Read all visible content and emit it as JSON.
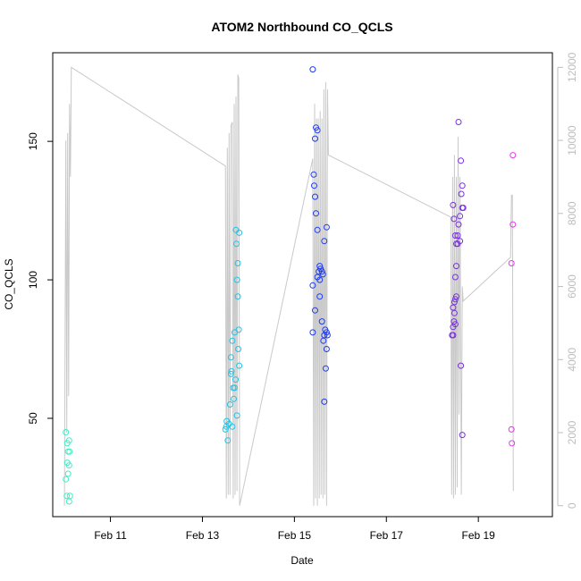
{
  "chart_data": {
    "type": "scatter",
    "title": "ATOM2 Northbound CO_QCLS",
    "xlabel": "Date",
    "ylabel": "CO_QCLS",
    "xlim": [
      9.745,
      20.61
    ],
    "ylim": [
      14.5,
      182
    ],
    "y2lim": [
      -300,
      12400
    ],
    "x_ticks": [
      {
        "value": 11,
        "label": "Feb 11"
      },
      {
        "value": 13,
        "label": "Feb 13"
      },
      {
        "value": 15,
        "label": "Feb 15"
      },
      {
        "value": 17,
        "label": "Feb 17"
      },
      {
        "value": 19,
        "label": "Feb 19"
      }
    ],
    "y_ticks": [
      50,
      100,
      150
    ],
    "y2_ticks": [
      0,
      2000,
      4000,
      6000,
      8000,
      10000,
      12000
    ],
    "colors": {
      "points": [
        "#3cf0c3",
        "#22c3e6",
        "#1e3cf0",
        "#7a30e0",
        "#e03ce8"
      ],
      "altitude_line": "#c9c9c9",
      "axis": "#000000",
      "right_axis": "#bdbdbd"
    },
    "series": [
      {
        "color": "#3cf0c3",
        "points": [
          [
            10.03,
            45
          ],
          [
            10.05,
            22
          ],
          [
            10.06,
            41
          ],
          [
            10.03,
            28
          ],
          [
            10.06,
            34
          ],
          [
            10.08,
            38
          ],
          [
            10.1,
            33
          ],
          [
            10.1,
            42
          ],
          [
            10.08,
            30
          ],
          [
            10.1,
            20
          ],
          [
            10.12,
            22
          ],
          [
            10.11,
            38
          ]
        ]
      },
      {
        "color": "#22c3e6",
        "points": [
          [
            13.5,
            46
          ],
          [
            13.52,
            47
          ],
          [
            13.53,
            49
          ],
          [
            13.55,
            42
          ],
          [
            13.58,
            48
          ],
          [
            13.6,
            55
          ],
          [
            13.62,
            66
          ],
          [
            13.62,
            72
          ],
          [
            13.63,
            67
          ],
          [
            13.65,
            47
          ],
          [
            13.65,
            78
          ],
          [
            13.67,
            61
          ],
          [
            13.68,
            57
          ],
          [
            13.7,
            81
          ],
          [
            13.72,
            64
          ],
          [
            13.73,
            118
          ],
          [
            13.74,
            113
          ],
          [
            13.75,
            100
          ],
          [
            13.75,
            51
          ],
          [
            13.77,
            106
          ],
          [
            13.77,
            94
          ],
          [
            13.78,
            75
          ],
          [
            13.79,
            82
          ],
          [
            13.8,
            69
          ],
          [
            13.8,
            117
          ],
          [
            13.7,
            61
          ]
        ]
      },
      {
        "color": "#1e3cf0",
        "points": [
          [
            15.4,
            176
          ],
          [
            15.47,
            155
          ],
          [
            15.45,
            151
          ],
          [
            15.5,
            154
          ],
          [
            15.42,
            138
          ],
          [
            15.43,
            134
          ],
          [
            15.45,
            130
          ],
          [
            15.47,
            124
          ],
          [
            15.5,
            118
          ],
          [
            15.7,
            119
          ],
          [
            15.65,
            114
          ],
          [
            15.55,
            105
          ],
          [
            15.53,
            103
          ],
          [
            15.57,
            104
          ],
          [
            15.6,
            103
          ],
          [
            15.62,
            102
          ],
          [
            15.5,
            101
          ],
          [
            15.55,
            100
          ],
          [
            15.4,
            98
          ],
          [
            15.55,
            94
          ],
          [
            15.45,
            89
          ],
          [
            15.6,
            85
          ],
          [
            15.67,
            82
          ],
          [
            15.7,
            81
          ],
          [
            15.65,
            80
          ],
          [
            15.72,
            80
          ],
          [
            15.4,
            81
          ],
          [
            15.63,
            78
          ],
          [
            15.7,
            75
          ],
          [
            15.68,
            68
          ],
          [
            15.65,
            56
          ]
        ]
      },
      {
        "color": "#7a30e0",
        "points": [
          [
            18.57,
            157
          ],
          [
            18.62,
            143
          ],
          [
            18.65,
            134
          ],
          [
            18.63,
            131
          ],
          [
            18.45,
            127
          ],
          [
            18.65,
            126
          ],
          [
            18.67,
            126
          ],
          [
            18.6,
            123
          ],
          [
            18.47,
            122
          ],
          [
            18.57,
            120
          ],
          [
            18.5,
            116
          ],
          [
            18.55,
            116
          ],
          [
            18.52,
            113
          ],
          [
            18.55,
            113
          ],
          [
            18.6,
            114
          ],
          [
            18.52,
            105
          ],
          [
            18.5,
            101
          ],
          [
            18.52,
            94
          ],
          [
            18.5,
            93
          ],
          [
            18.48,
            92
          ],
          [
            18.45,
            90
          ],
          [
            18.48,
            88
          ],
          [
            18.47,
            85
          ],
          [
            18.45,
            83
          ],
          [
            18.5,
            84
          ],
          [
            18.43,
            80
          ],
          [
            18.45,
            80
          ],
          [
            18.62,
            69
          ],
          [
            18.65,
            44
          ]
        ]
      },
      {
        "color": "#e03ce8",
        "points": [
          [
            19.75,
            145
          ],
          [
            19.75,
            120
          ],
          [
            19.72,
            106
          ],
          [
            19.72,
            46
          ],
          [
            19.73,
            41
          ]
        ]
      }
    ],
    "altitude_line": [
      [
        10.0,
        0
      ],
      [
        10.03,
        10000
      ],
      [
        10.05,
        2000
      ],
      [
        10.07,
        10200
      ],
      [
        10.09,
        3000
      ],
      [
        10.11,
        11000
      ],
      [
        10.13,
        9000
      ],
      [
        10.15,
        12000
      ],
      [
        13.5,
        9300
      ],
      [
        13.52,
        200
      ],
      [
        13.54,
        9800
      ],
      [
        13.56,
        300
      ],
      [
        13.58,
        10200
      ],
      [
        13.6,
        300
      ],
      [
        13.62,
        10400
      ],
      [
        13.65,
        10500
      ],
      [
        13.67,
        200
      ],
      [
        13.69,
        11000
      ],
      [
        13.71,
        300
      ],
      [
        13.73,
        11200
      ],
      [
        13.75,
        400
      ],
      [
        13.77,
        11800
      ],
      [
        13.79,
        11700
      ],
      [
        13.81,
        0
      ],
      [
        15.4,
        9500
      ],
      [
        15.42,
        0
      ],
      [
        15.44,
        11000
      ],
      [
        15.46,
        200
      ],
      [
        15.48,
        10600
      ],
      [
        15.5,
        0
      ],
      [
        15.52,
        10600
      ],
      [
        15.54,
        200
      ],
      [
        15.56,
        10800
      ],
      [
        15.58,
        300
      ],
      [
        15.6,
        10600
      ],
      [
        15.62,
        200
      ],
      [
        15.64,
        11400
      ],
      [
        15.66,
        300
      ],
      [
        15.68,
        11600
      ],
      [
        15.7,
        0
      ],
      [
        15.72,
        11400
      ],
      [
        15.74,
        9600
      ],
      [
        18.4,
        7900
      ],
      [
        18.42,
        300
      ],
      [
        18.44,
        9000
      ],
      [
        18.46,
        200
      ],
      [
        18.48,
        9600
      ],
      [
        18.5,
        300
      ],
      [
        18.52,
        9000
      ],
      [
        18.54,
        500
      ],
      [
        18.56,
        10100
      ],
      [
        18.58,
        2500
      ],
      [
        18.6,
        9000
      ],
      [
        18.63,
        300
      ],
      [
        18.65,
        6000
      ],
      [
        18.67,
        5600
      ],
      [
        19.7,
        6800
      ],
      [
        19.72,
        8500
      ],
      [
        19.74,
        8500
      ],
      [
        19.76,
        400
      ]
    ]
  }
}
